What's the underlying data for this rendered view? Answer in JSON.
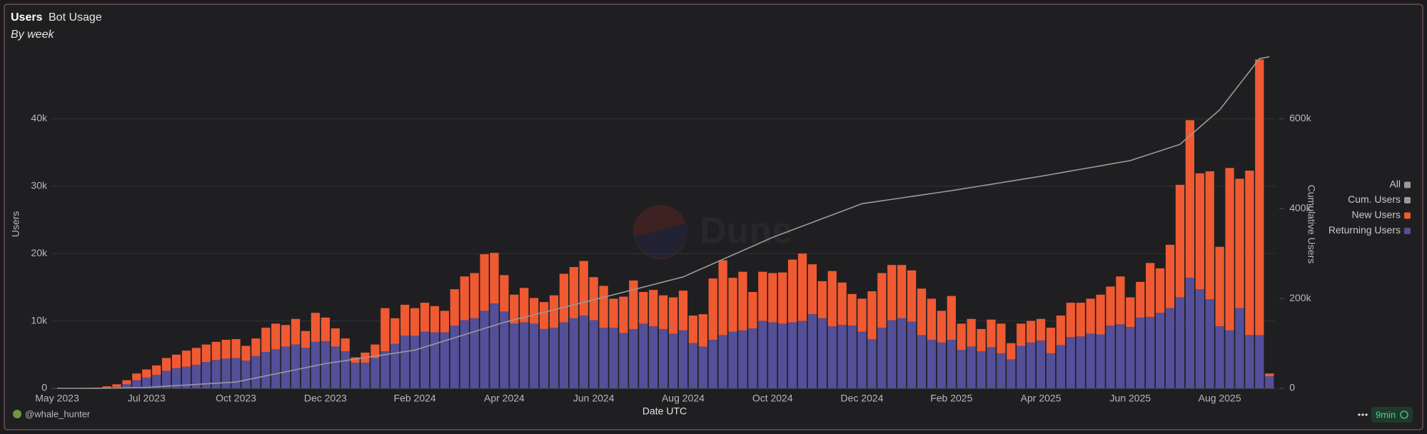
{
  "chart_data": {
    "type": "bar",
    "title": "Users",
    "subtitle": "Bot Usage",
    "caption": "By week",
    "watermark": "Dune",
    "x_label": "Date UTC",
    "y_label": "Users",
    "y2_label": "Cumulative Users",
    "legend_all": {
      "label": "All",
      "color": "#9a9a9a"
    },
    "legend": "right",
    "grid": true,
    "stacked": true,
    "footer": {
      "author": "@whale_hunter",
      "refresh": "9min"
    },
    "ylim": [
      0,
      50000
    ],
    "yticks": [
      0,
      {
        "value": 10000,
        "label": "10k"
      },
      {
        "value": 20000,
        "label": "20k"
      },
      {
        "value": 30000,
        "label": "30k"
      },
      {
        "value": 40000,
        "label": "40k"
      }
    ],
    "y2lim": [
      0,
      750000
    ],
    "y2ticks": [
      0,
      {
        "value": 200000,
        "label": "200k"
      },
      {
        "value": 400000,
        "label": "400k"
      },
      {
        "value": 600000,
        "label": "600k"
      }
    ],
    "categories": [
      "May 2023",
      null,
      null,
      null,
      null,
      null,
      null,
      null,
      null,
      "Jul 2023",
      null,
      null,
      null,
      null,
      null,
      null,
      null,
      null,
      "Oct 2023",
      null,
      null,
      null,
      null,
      null,
      null,
      null,
      null,
      "Dec 2023",
      null,
      null,
      null,
      null,
      null,
      null,
      null,
      null,
      "Feb 2024",
      null,
      null,
      null,
      null,
      null,
      null,
      null,
      null,
      "Apr 2024",
      null,
      null,
      null,
      null,
      null,
      null,
      null,
      null,
      "Jun 2024",
      null,
      null,
      null,
      null,
      null,
      null,
      null,
      null,
      "Aug 2024",
      null,
      null,
      null,
      null,
      null,
      null,
      null,
      null,
      "Oct 2024",
      null,
      null,
      null,
      null,
      null,
      null,
      null,
      null,
      "Dec 2024",
      null,
      null,
      null,
      null,
      null,
      null,
      null,
      null,
      "Feb 2025",
      null,
      null,
      null,
      null,
      null,
      null,
      null,
      null,
      "Apr 2025",
      null,
      null,
      null,
      null,
      null,
      null,
      null,
      null,
      "Jun 2025",
      null,
      null,
      null,
      null,
      null,
      null,
      null,
      null,
      "Aug 2025",
      null,
      null,
      null,
      null,
      null
    ],
    "series": [
      {
        "name": "Cum. Users",
        "type": "line",
        "axis": "y2",
        "color": "#9a9a9a",
        "values": [
          0,
          0,
          0,
          50,
          100,
          300,
          700,
          1100,
          1600,
          2000,
          3300,
          4700,
          6000,
          7300,
          8700,
          10000,
          11300,
          12700,
          14000,
          18600,
          23100,
          27700,
          32200,
          36800,
          41300,
          45900,
          50400,
          55000,
          58300,
          61700,
          65000,
          68300,
          71700,
          75000,
          78300,
          81700,
          85000,
          91900,
          98800,
          105700,
          112600,
          119400,
          126300,
          133200,
          140100,
          147000,
          152600,
          158100,
          163700,
          169200,
          174800,
          180300,
          185900,
          191400,
          197000,
          202700,
          208300,
          214000,
          219700,
          225300,
          231000,
          236700,
          242300,
          248000,
          257800,
          267600,
          277300,
          287100,
          296900,
          306700,
          316400,
          326200,
          336000,
          344300,
          352700,
          361000,
          369300,
          377700,
          386000,
          394300,
          402700,
          411000,
          414200,
          417400,
          420700,
          423900,
          427100,
          430300,
          433600,
          436800,
          440000,
          443600,
          447100,
          450700,
          454200,
          457800,
          461300,
          464900,
          468400,
          472000,
          475900,
          479800,
          483700,
          487600,
          491400,
          495300,
          499200,
          503100,
          507000,
          514200,
          521400,
          528600,
          535800,
          543000,
          562300,
          581500,
          600800,
          620000,
          648500,
          677000,
          705500,
          734000,
          738000
        ]
      },
      {
        "name": "New Users",
        "type": "bar",
        "color": "#f05a32",
        "values": [
          0,
          0,
          0,
          50,
          100,
          200,
          400,
          600,
          1000,
          1200,
          1400,
          1900,
          2000,
          2400,
          2500,
          2600,
          2700,
          2800,
          2800,
          2200,
          2600,
          3600,
          3800,
          3200,
          3800,
          2500,
          4300,
          3500,
          2700,
          1900,
          800,
          1500,
          2000,
          6400,
          3800,
          4600,
          4100,
          4300,
          3900,
          3200,
          5400,
          6500,
          6700,
          8400,
          7500,
          5400,
          4300,
          5100,
          3800,
          4000,
          4800,
          7200,
          7600,
          8100,
          6400,
          6200,
          4300,
          5400,
          7200,
          4700,
          5400,
          5000,
          5400,
          5900,
          4100,
          4800,
          9100,
          11100,
          8000,
          8700,
          5400,
          7300,
          7300,
          7600,
          9300,
          10000,
          7400,
          5500,
          8200,
          6300,
          4700,
          4900,
          7100,
          8100,
          8200,
          7900,
          7600,
          6900,
          6100,
          4700,
          6500,
          3900,
          4100,
          3300,
          4100,
          4400,
          2400,
          3300,
          3200,
          3200,
          3800,
          4400,
          5100,
          5000,
          5200,
          5900,
          5800,
          7100,
          4400,
          5300,
          8000,
          6600,
          9400,
          16700,
          23400,
          17200,
          19000,
          11800,
          24100,
          19200,
          24400,
          40900,
          400
        ]
      },
      {
        "name": "Returning Users",
        "type": "bar",
        "color": "#534f98",
        "values": [
          0,
          0,
          0,
          0,
          0,
          100,
          200,
          600,
          1200,
          1600,
          2000,
          2600,
          3000,
          3200,
          3500,
          3900,
          4200,
          4400,
          4500,
          4100,
          4800,
          5400,
          5800,
          6200,
          6500,
          6000,
          6900,
          7000,
          6200,
          5500,
          3800,
          3800,
          4500,
          5500,
          6600,
          7800,
          7800,
          8400,
          8300,
          8300,
          9300,
          10100,
          10400,
          11500,
          12600,
          11400,
          9600,
          9800,
          9600,
          8800,
          9000,
          9800,
          10400,
          10800,
          10100,
          9000,
          9000,
          8200,
          8800,
          9600,
          9200,
          8800,
          8100,
          8600,
          6700,
          6200,
          7200,
          7900,
          8400,
          8600,
          8900,
          10000,
          9800,
          9600,
          9800,
          10000,
          11000,
          10400,
          9200,
          9400,
          9300,
          8400,
          7300,
          9000,
          10100,
          10400,
          9900,
          7900,
          7200,
          6800,
          7200,
          5700,
          6200,
          5500,
          6100,
          5200,
          4300,
          6300,
          6800,
          7100,
          5200,
          6400,
          7600,
          7700,
          8100,
          8000,
          9300,
          9500,
          9100,
          10500,
          10600,
          11200,
          11900,
          13500,
          16400,
          14700,
          13200,
          9200,
          8600,
          11900,
          7900,
          7900,
          1800
        ]
      }
    ]
  }
}
